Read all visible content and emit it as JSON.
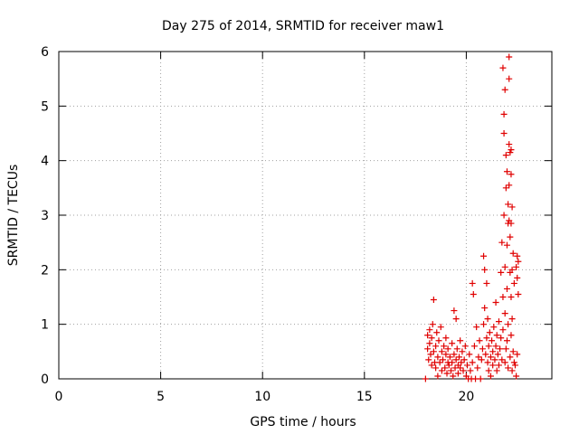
{
  "chart_data": {
    "type": "scatter",
    "title": "Day 275 of 2014, SRMTID for receiver maw1",
    "xlabel": "GPS time / hours",
    "ylabel": "SRMTID / TECUs",
    "xlim": [
      0,
      24.2
    ],
    "ylim": [
      0,
      6
    ],
    "xticks": [
      0,
      5,
      10,
      15,
      20
    ],
    "yticks": [
      0,
      1,
      2,
      3,
      4,
      5,
      6
    ],
    "grid": true,
    "marker": "+",
    "series_color": "#e00000",
    "points": [
      [
        18.0,
        0.0
      ],
      [
        18.1,
        0.55
      ],
      [
        18.1,
        0.8
      ],
      [
        18.15,
        0.35
      ],
      [
        18.2,
        0.65
      ],
      [
        18.2,
        0.9
      ],
      [
        18.25,
        0.45
      ],
      [
        18.3,
        0.25
      ],
      [
        18.3,
        0.75
      ],
      [
        18.35,
        1.0
      ],
      [
        18.4,
        0.5
      ],
      [
        18.4,
        1.45
      ],
      [
        18.45,
        0.3
      ],
      [
        18.5,
        0.6
      ],
      [
        18.5,
        0.2
      ],
      [
        18.55,
        0.85
      ],
      [
        18.6,
        0.4
      ],
      [
        18.6,
        0.05
      ],
      [
        18.65,
        0.7
      ],
      [
        18.7,
        0.3
      ],
      [
        18.75,
        0.95
      ],
      [
        18.8,
        0.5
      ],
      [
        18.8,
        0.15
      ],
      [
        18.85,
        0.35
      ],
      [
        18.9,
        0.6
      ],
      [
        18.95,
        0.2
      ],
      [
        19.0,
        0.45
      ],
      [
        19.0,
        0.75
      ],
      [
        19.05,
        0.1
      ],
      [
        19.1,
        0.3
      ],
      [
        19.1,
        0.55
      ],
      [
        19.15,
        0.25
      ],
      [
        19.2,
        0.4
      ],
      [
        19.25,
        0.15
      ],
      [
        19.3,
        0.65
      ],
      [
        19.3,
        0.3
      ],
      [
        19.35,
        0.05
      ],
      [
        19.4,
        0.45
      ],
      [
        19.4,
        1.25
      ],
      [
        19.45,
        0.2
      ],
      [
        19.5,
        0.35
      ],
      [
        19.5,
        1.1
      ],
      [
        19.55,
        0.55
      ],
      [
        19.6,
        0.25
      ],
      [
        19.6,
        0.1
      ],
      [
        19.65,
        0.4
      ],
      [
        19.7,
        0.7
      ],
      [
        19.7,
        0.2
      ],
      [
        19.75,
        0.3
      ],
      [
        19.8,
        0.5
      ],
      [
        19.85,
        0.15
      ],
      [
        19.9,
        0.35
      ],
      [
        19.95,
        0.6
      ],
      [
        20.0,
        0.05
      ],
      [
        20.05,
        0.25
      ],
      [
        20.1,
        0.0
      ],
      [
        20.15,
        0.45
      ],
      [
        20.2,
        0.15
      ],
      [
        20.25,
        0.0
      ],
      [
        20.3,
        0.3
      ],
      [
        20.3,
        1.75
      ],
      [
        20.35,
        1.55
      ],
      [
        20.4,
        0.6
      ],
      [
        20.45,
        0.0
      ],
      [
        20.5,
        0.95
      ],
      [
        20.55,
        0.2
      ],
      [
        20.6,
        0.4
      ],
      [
        20.65,
        0.7
      ],
      [
        20.7,
        0.0
      ],
      [
        20.75,
        0.35
      ],
      [
        20.8,
        0.55
      ],
      [
        20.85,
        1.0
      ],
      [
        20.85,
        2.25
      ],
      [
        20.9,
        2.0
      ],
      [
        20.9,
        1.3
      ],
      [
        20.95,
        0.45
      ],
      [
        21.0,
        0.75
      ],
      [
        21.0,
        1.75
      ],
      [
        21.05,
        0.3
      ],
      [
        21.05,
        1.1
      ],
      [
        21.1,
        0.15
      ],
      [
        21.1,
        0.6
      ],
      [
        21.15,
        0.85
      ],
      [
        21.2,
        0.4
      ],
      [
        21.2,
        0.05
      ],
      [
        21.25,
        0.7
      ],
      [
        21.3,
        0.25
      ],
      [
        21.3,
        0.5
      ],
      [
        21.35,
        0.95
      ],
      [
        21.4,
        0.35
      ],
      [
        21.45,
        0.6
      ],
      [
        21.45,
        1.4
      ],
      [
        21.5,
        0.15
      ],
      [
        21.5,
        0.8
      ],
      [
        21.55,
        0.45
      ],
      [
        21.6,
        1.05
      ],
      [
        21.6,
        0.25
      ],
      [
        21.65,
        0.55
      ],
      [
        21.7,
        0.75
      ],
      [
        21.7,
        1.95
      ],
      [
        21.75,
        0.35
      ],
      [
        21.75,
        2.5
      ],
      [
        21.8,
        0.9
      ],
      [
        21.8,
        1.5
      ],
      [
        21.8,
        5.7
      ],
      [
        21.85,
        3.0
      ],
      [
        21.85,
        4.5
      ],
      [
        21.85,
        4.85
      ],
      [
        21.9,
        2.05
      ],
      [
        21.9,
        1.2
      ],
      [
        21.9,
        0.3
      ],
      [
        21.9,
        5.3
      ],
      [
        21.95,
        3.5
      ],
      [
        21.95,
        4.1
      ],
      [
        21.95,
        0.55
      ],
      [
        22.0,
        2.45
      ],
      [
        22.0,
        1.65
      ],
      [
        22.0,
        0.7
      ],
      [
        22.0,
        3.8
      ],
      [
        22.05,
        2.85
      ],
      [
        22.05,
        1.0
      ],
      [
        22.05,
        3.2
      ],
      [
        22.05,
        0.2
      ],
      [
        22.1,
        5.9
      ],
      [
        22.1,
        5.5
      ],
      [
        22.1,
        2.9
      ],
      [
        22.1,
        4.3
      ],
      [
        22.1,
        3.55
      ],
      [
        22.15,
        1.95
      ],
      [
        22.15,
        2.6
      ],
      [
        22.15,
        4.15
      ],
      [
        22.15,
        0.4
      ],
      [
        22.2,
        3.75
      ],
      [
        22.2,
        2.85
      ],
      [
        22.2,
        1.5
      ],
      [
        22.2,
        0.8
      ],
      [
        22.2,
        4.2
      ],
      [
        22.25,
        3.15
      ],
      [
        22.25,
        2.0
      ],
      [
        22.25,
        1.1
      ],
      [
        22.25,
        0.15
      ],
      [
        22.3,
        2.3
      ],
      [
        22.3,
        0.5
      ],
      [
        22.35,
        1.75
      ],
      [
        22.35,
        0.3
      ],
      [
        22.4,
        0.25
      ],
      [
        22.45,
        2.05
      ],
      [
        22.45,
        0.05
      ],
      [
        22.5,
        2.25
      ],
      [
        22.5,
        1.85
      ],
      [
        22.5,
        0.45
      ],
      [
        22.55,
        1.55
      ],
      [
        22.55,
        2.15
      ]
    ]
  }
}
